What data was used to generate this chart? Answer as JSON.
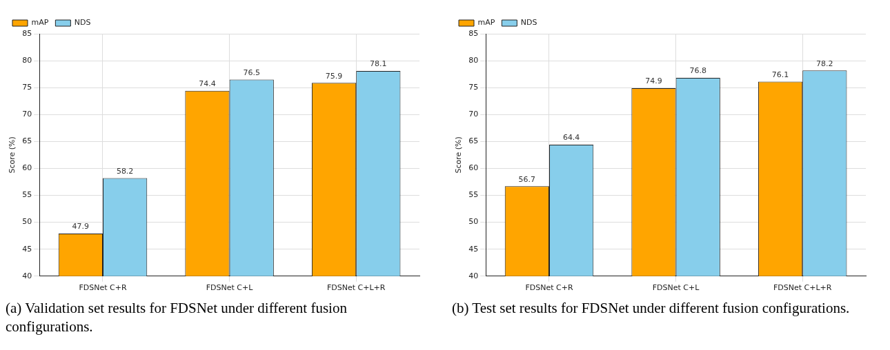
{
  "chart_data": [
    {
      "type": "bar",
      "ylabel": "Score (%)",
      "categories": [
        "FDSNet C+R",
        "FDSNet C+L",
        "FDSNet C+L+R"
      ],
      "series": [
        {
          "name": "mAP",
          "color": "#ffa500",
          "values": [
            47.9,
            74.4,
            75.9
          ]
        },
        {
          "name": "NDS",
          "color": "#87ceeb",
          "values": [
            58.2,
            76.5,
            78.1
          ]
        }
      ],
      "ylim": [
        40,
        85
      ],
      "yticks": [
        40,
        45,
        50,
        55,
        60,
        65,
        70,
        75,
        80,
        85
      ],
      "grid": true,
      "legend": "top left",
      "data_labels": true,
      "annotations": [
        "(a) Validation set results for FDSNet under different fusion configurations."
      ]
    },
    {
      "type": "bar",
      "ylabel": "Score (%)",
      "categories": [
        "FDSNet C+R",
        "FDSNet C+L",
        "FDSNet C+L+R"
      ],
      "series": [
        {
          "name": "mAP",
          "color": "#ffa500",
          "values": [
            56.7,
            74.9,
            76.1
          ]
        },
        {
          "name": "NDS",
          "color": "#87ceeb",
          "values": [
            64.4,
            76.8,
            78.2
          ]
        }
      ],
      "ylim": [
        40,
        85
      ],
      "yticks": [
        40,
        45,
        50,
        55,
        60,
        65,
        70,
        75,
        80,
        85
      ],
      "grid": true,
      "legend": "top left",
      "data_labels": true,
      "annotations": [
        "(b) Test set results for FDSNet under different fusion configurations."
      ]
    }
  ]
}
